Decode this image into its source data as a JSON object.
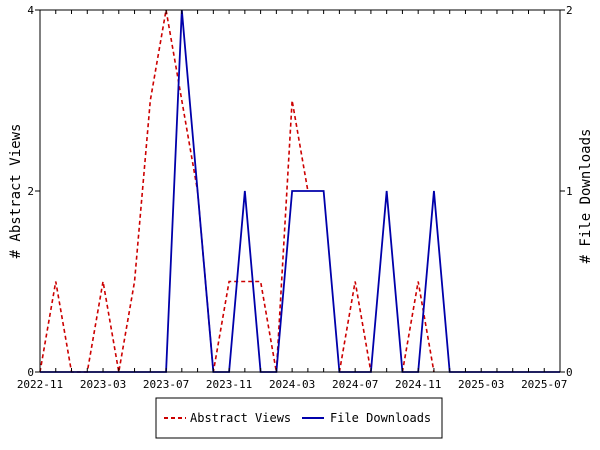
{
  "chart_data": {
    "type": "line",
    "x": [
      "2022-11",
      "2022-12",
      "2023-01",
      "2023-02",
      "2023-03",
      "2023-04",
      "2023-05",
      "2023-06",
      "2023-07",
      "2023-08",
      "2023-09",
      "2023-10",
      "2023-11",
      "2023-12",
      "2024-01",
      "2024-02",
      "2024-03",
      "2024-04",
      "2024-05",
      "2024-06",
      "2024-07",
      "2024-08",
      "2024-09",
      "2024-10",
      "2024-11",
      "2024-12",
      "2025-01",
      "2025-02",
      "2025-03",
      "2025-04",
      "2025-05",
      "2025-06",
      "2025-07",
      "2025-08"
    ],
    "xticks": [
      "2022-11",
      "2023-03",
      "2023-07",
      "2023-11",
      "2024-03",
      "2024-07",
      "2024-11",
      "2025-03",
      "2025-07"
    ],
    "series": [
      {
        "name": "Abstract Views",
        "axis": "left",
        "color": "#cc0000",
        "style": "dashed",
        "values": [
          0,
          1,
          0,
          0,
          1,
          0,
          1,
          3,
          4,
          3,
          2,
          0,
          1,
          1,
          1,
          0,
          3,
          2,
          null,
          0,
          1,
          0,
          null,
          0,
          1,
          0,
          null,
          null,
          null,
          null,
          null,
          null,
          null,
          null
        ]
      },
      {
        "name": "File Downloads",
        "axis": "right",
        "color": "#0000aa",
        "style": "solid",
        "values": [
          0,
          0,
          0,
          0,
          0,
          0,
          0,
          0,
          0,
          2,
          1,
          0,
          0,
          1,
          0,
          0,
          1,
          1,
          1,
          0,
          0,
          0,
          1,
          0,
          0,
          1,
          0,
          0,
          0,
          0,
          0,
          0,
          0,
          0
        ]
      }
    ],
    "ylabel_left": "# Abstract Views",
    "ylabel_right": "# File Downloads",
    "ylim_left": [
      0,
      4
    ],
    "ylim_right": [
      0,
      2
    ],
    "yticks_left": [
      "0",
      "2",
      "4"
    ],
    "yticks_right": [
      "0",
      "1",
      "2"
    ],
    "grid": false,
    "legend_placement": "bottom-center"
  }
}
